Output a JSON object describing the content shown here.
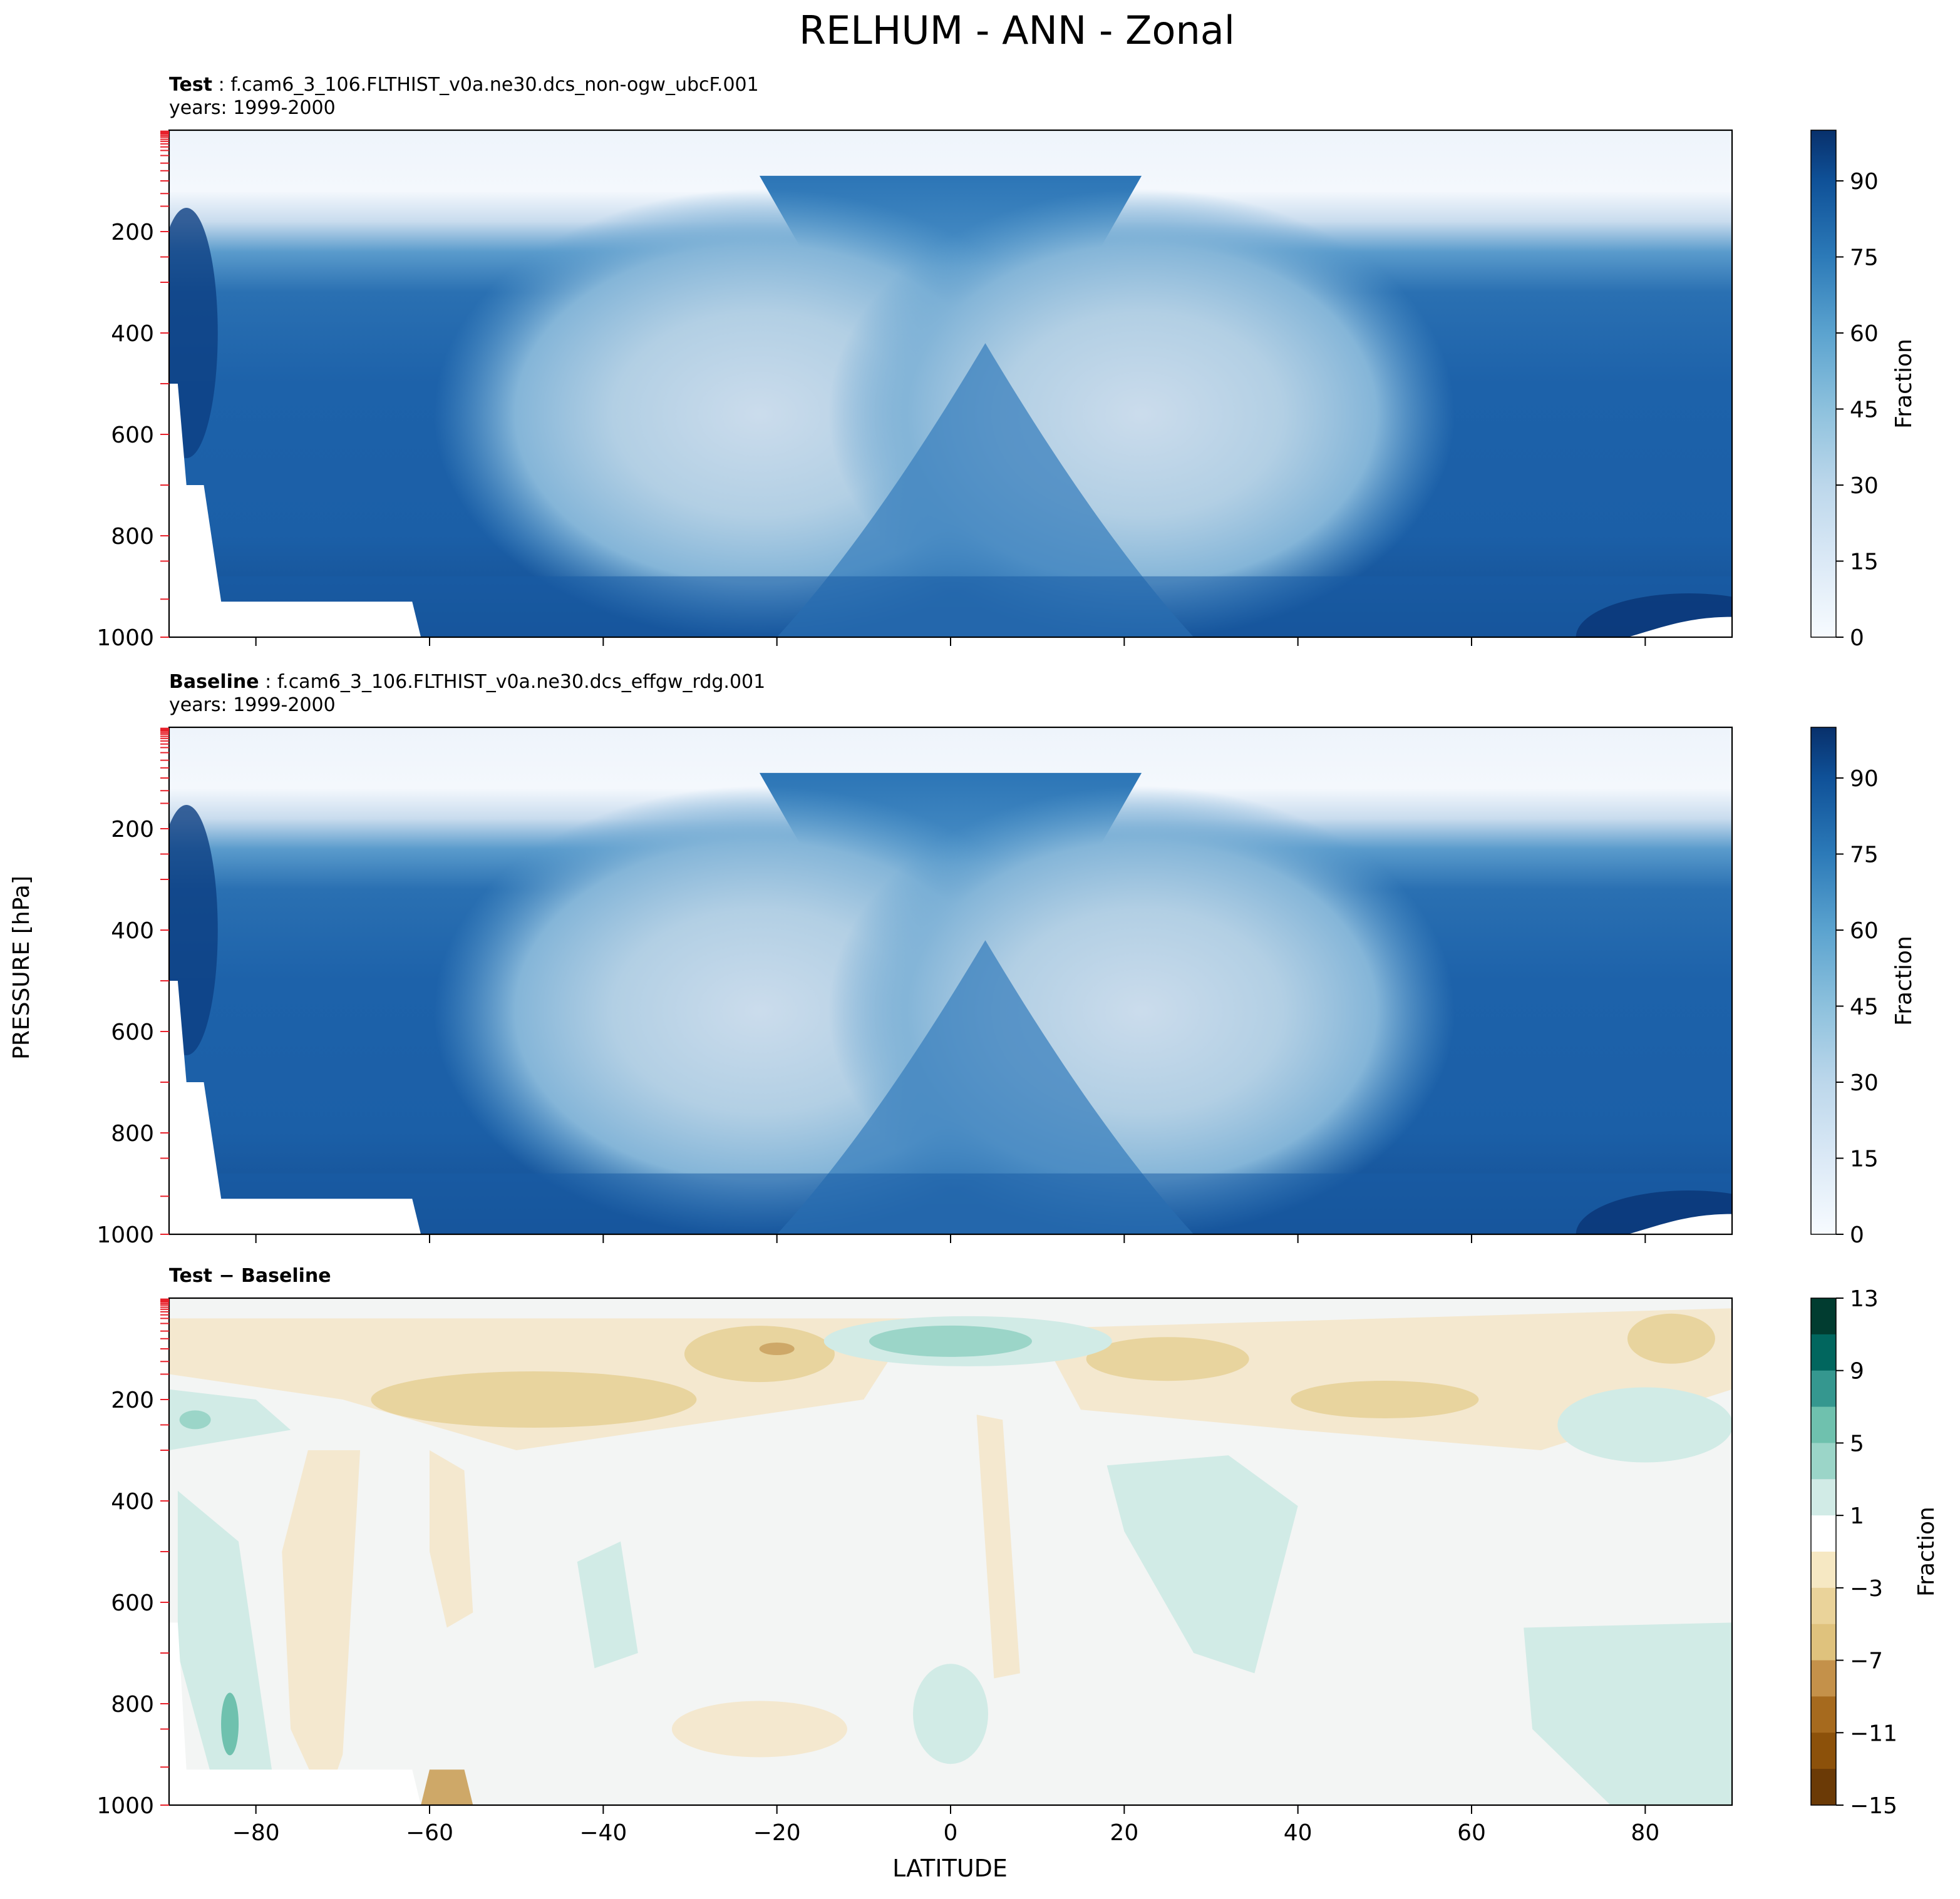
{
  "figure": {
    "title": "RELHUM - ANN - Zonal",
    "ylabel": "PRESSURE [hPa]",
    "xlabel": "LATITUDE"
  },
  "chart_data": [
    {
      "type": "contour",
      "panel": "test",
      "label_bold": "Test",
      "label_rest": ": f.cam6_3_106.FLTHIST_v0a.ne30.dcs_non-ogw_ubcF.001",
      "years": "years: 1999-2000",
      "x_range": [
        -90,
        90
      ],
      "y_range": [
        1000,
        0
      ],
      "x_ticks": [
        -80,
        -60,
        -40,
        -20,
        0,
        20,
        40,
        60,
        80
      ],
      "y_ticks": [
        "200",
        "400",
        "600",
        "800",
        "1000"
      ],
      "colorbar": {
        "label": "Fraction",
        "colormap": "Blues",
        "ticks": [
          "0",
          "15",
          "30",
          "45",
          "60",
          "75",
          "90"
        ],
        "range": [
          0,
          100
        ],
        "levels": 20
      }
    },
    {
      "type": "contour",
      "panel": "baseline",
      "label_bold": "Baseline",
      "label_rest": ": f.cam6_3_106.FLTHIST_v0a.ne30.dcs_effgw_rdg.001",
      "years": "years: 1999-2000",
      "x_range": [
        -90,
        90
      ],
      "y_range": [
        1000,
        0
      ],
      "x_ticks": [
        -80,
        -60,
        -40,
        -20,
        0,
        20,
        40,
        60,
        80
      ],
      "y_ticks": [
        "200",
        "400",
        "600",
        "800",
        "1000"
      ],
      "colorbar": {
        "label": "Fraction",
        "colormap": "Blues",
        "ticks": [
          "0",
          "15",
          "30",
          "45",
          "60",
          "75",
          "90"
        ],
        "range": [
          0,
          100
        ],
        "levels": 20
      }
    },
    {
      "type": "contour",
      "panel": "difference",
      "label_bold": "Test − Baseline",
      "x_range": [
        -90,
        90
      ],
      "y_range": [
        1000,
        0
      ],
      "x_ticks": [
        -80,
        -60,
        -40,
        -20,
        0,
        20,
        40,
        60,
        80
      ],
      "x_tick_labels": [
        "−80",
        "−60",
        "−40",
        "−20",
        "0",
        "20",
        "40",
        "60",
        "80"
      ],
      "y_ticks": [
        "200",
        "400",
        "600",
        "800",
        "1000"
      ],
      "colorbar": {
        "label": "Fraction",
        "colormap": "BrBG",
        "ticks": [
          "13",
          "9",
          "5",
          "1",
          "−3",
          "−7",
          "−11",
          "−15"
        ],
        "range": [
          -15,
          13
        ]
      }
    }
  ]
}
